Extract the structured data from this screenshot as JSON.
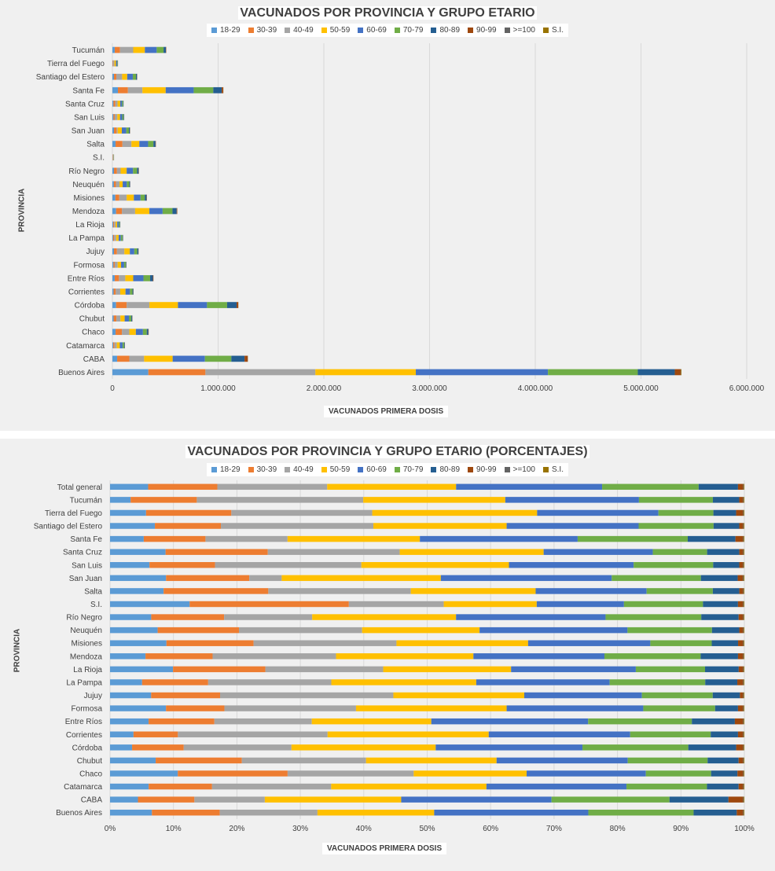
{
  "colors": {
    "18-29": "#5b9bd5",
    "30-39": "#ed7d31",
    "40-49": "#a5a5a5",
    "50-59": "#ffc000",
    "60-69": "#4472c4",
    "70-79": "#70ad47",
    "80-89": "#255e91",
    "90-99": "#9e480e",
    ">=100": "#636363",
    "S.I.": "#997300"
  },
  "legend": [
    "18-29",
    "30-39",
    "40-49",
    "50-59",
    "60-69",
    "70-79",
    "80-89",
    "90-99",
    ">=100",
    "S.I."
  ],
  "chart_data": [
    {
      "type": "bar",
      "orientation": "horizontal",
      "stacked": true,
      "title": "VACUNADOS POR PROVINCIA Y GRUPO ETARIO",
      "xlabel": "VACUNADOS PRIMERA  DOSIS",
      "ylabel": "PROVINCIA",
      "xlim": [
        0,
        6000000
      ],
      "xticks": [
        0,
        1000000,
        2000000,
        3000000,
        4000000,
        5000000,
        6000000
      ],
      "xtick_labels": [
        "0",
        "1.000.000",
        "2.000.000",
        "3.000.000",
        "4.000.000",
        "5.000.000",
        "6.000.000"
      ],
      "categories": [
        "Buenos Aires",
        "CABA",
        "Catamarca",
        "Chaco",
        "Chubut",
        "Córdoba",
        "Corrientes",
        "Entre Ríos",
        "Formosa",
        "Jujuy",
        "La Pampa",
        "La Rioja",
        "Mendoza",
        "Misiones",
        "Neuquén",
        "Río Negro",
        "S.I.",
        "Salta",
        "San Juan",
        "San Luis",
        "Santa Cruz",
        "Santa Fe",
        "Santiago del Estero",
        "Tierra del Fuego",
        "Tucumán"
      ],
      "series": [
        {
          "name": "18-29",
          "values": [
            340000,
            45000,
            8000,
            30000,
            12000,
            35000,
            12000,
            22000,
            10000,
            15000,
            7000,
            8000,
            35000,
            28000,
            14000,
            15000,
            2000,
            30000,
            15000,
            10000,
            10000,
            52000,
            15000,
            3000,
            22000
          ]
        },
        {
          "name": "30-39",
          "values": [
            540000,
            115000,
            12000,
            60000,
            26000,
            100000,
            20000,
            40000,
            12000,
            28000,
            10000,
            8000,
            55000,
            37000,
            20000,
            28000,
            4000,
            65000,
            25000,
            12000,
            18000,
            95000,
            22000,
            6000,
            50000
          ]
        },
        {
          "name": "40-49",
          "values": [
            1040000,
            140000,
            22000,
            70000,
            38000,
            215000,
            42000,
            60000,
            28000,
            70000,
            19000,
            14000,
            125000,
            70000,
            33000,
            35000,
            2000,
            85000,
            10000,
            25000,
            21000,
            137000,
            55000,
            10000,
            125000
          ]
        },
        {
          "name": "50-59",
          "values": [
            950000,
            270000,
            28000,
            62000,
            40000,
            270000,
            50000,
            75000,
            32000,
            52000,
            23000,
            16000,
            135000,
            68000,
            30000,
            57000,
            2000,
            75000,
            39000,
            25000,
            25000,
            220000,
            48000,
            15000,
            110000
          ]
        },
        {
          "name": "60-69",
          "values": [
            1250000,
            305000,
            26000,
            67000,
            40000,
            275000,
            42000,
            97000,
            29000,
            42000,
            21000,
            15000,
            125000,
            63000,
            39000,
            60000,
            2000,
            83000,
            42000,
            21000,
            17000,
            265000,
            53000,
            11000,
            112000
          ]
        },
        {
          "name": "70-79",
          "values": [
            850000,
            250000,
            15000,
            36000,
            23000,
            190000,
            24000,
            63000,
            15000,
            28000,
            15000,
            9000,
            93000,
            40000,
            23000,
            38000,
            2000,
            50000,
            25000,
            13000,
            10000,
            185000,
            30000,
            5000,
            65000
          ]
        },
        {
          "name": "80-89",
          "values": [
            350000,
            125000,
            6000,
            15000,
            9000,
            90000,
            8000,
            26000,
            5000,
            11000,
            5000,
            4000,
            40000,
            17000,
            8000,
            15000,
            1000,
            20000,
            10000,
            5000,
            4000,
            80000,
            10000,
            2000,
            22000
          ]
        },
        {
          "name": "90-99",
          "values": [
            55000,
            30000,
            1000,
            3000,
            1500,
            15000,
            1500,
            5000,
            1000,
            1500,
            1000,
            600,
            5000,
            3000,
            1000,
            2500,
            300,
            3000,
            1200,
            700,
            500,
            14000,
            1500,
            600,
            3000
          ]
        },
        {
          "name": ">=100",
          "values": [
            3000,
            1500,
            100,
            300,
            100,
            1000,
            100,
            300,
            100,
            200,
            100,
            50,
            300,
            200,
            100,
            200,
            20,
            200,
            100,
            50,
            30,
            900,
            100,
            30,
            200
          ]
        },
        {
          "name": "S.I.",
          "values": [
            5000,
            1000,
            200,
            200,
            200,
            1000,
            200,
            200,
            200,
            200,
            100,
            100,
            500,
            300,
            200,
            300,
            50,
            300,
            200,
            100,
            100,
            1000,
            200,
            100,
            300
          ]
        }
      ]
    },
    {
      "type": "bar",
      "orientation": "horizontal",
      "stacked": true,
      "percent": true,
      "title": "VACUNADOS POR PROVINCIA Y GRUPO ETARIO (PORCENTAJES)",
      "xlabel": "VACUNADOS PRIMERA  DOSIS",
      "ylabel": "PROVINCIA",
      "xlim": [
        0,
        100
      ],
      "xticks": [
        0,
        10,
        20,
        30,
        40,
        50,
        60,
        70,
        80,
        90,
        100
      ],
      "xtick_labels": [
        "0%",
        "10%",
        "20%",
        "30%",
        "40%",
        "50%",
        "60%",
        "70%",
        "80%",
        "90%",
        "100%"
      ],
      "categories": [
        "Buenos Aires",
        "CABA",
        "Catamarca",
        "Chaco",
        "Chubut",
        "Córdoba",
        "Corrientes",
        "Entre Ríos",
        "Formosa",
        "Jujuy",
        "La Pampa",
        "La Rioja",
        "Mendoza",
        "Misiones",
        "Neuquén",
        "Río Negro",
        "S.I.",
        "Salta",
        "San Juan",
        "San Luis",
        "Santa Cruz",
        "Santa Fe",
        "Santiago del Estero",
        "Tierra del Fuego",
        "Tucumán",
        "Total general"
      ],
      "series": [
        {
          "name": "18-29",
          "values": [
            6.6,
            4.4,
            6.1,
            10.8,
            7.2,
            3.5,
            3.7,
            6.1,
            8.8,
            6.5,
            5.0,
            10.1,
            5.6,
            9.0,
            7.5,
            6.5,
            12.5,
            8.5,
            7.6,
            6.2,
            8.8,
            5.3,
            7.0,
            5.7,
            3.2,
            6.0
          ]
        },
        {
          "name": "30-39",
          "values": [
            10.7,
            8.9,
            10.0,
            17.5,
            13.6,
            8.2,
            7.0,
            10.4,
            9.2,
            10.9,
            10.3,
            14.8,
            10.6,
            13.9,
            12.8,
            11.5,
            25.0,
            16.6,
            11.3,
            10.3,
            16.2,
            9.7,
            10.3,
            13.5,
            10.3,
            10.9
          ]
        },
        {
          "name": "40-49",
          "values": [
            15.4,
            11.1,
            18.8,
            20.1,
            19.6,
            17.1,
            23.6,
            15.4,
            20.7,
            27.4,
            19.2,
            18.9,
            19.5,
            22.8,
            19.4,
            13.9,
            14.9,
            22.6,
            4.4,
            23.0,
            20.9,
            12.9,
            23.8,
            22.3,
            25.9,
            17.3
          ]
        },
        {
          "name": "50-59",
          "values": [
            18.4,
            21.5,
            24.5,
            18.0,
            20.6,
            22.9,
            25.4,
            18.9,
            23.7,
            20.7,
            22.6,
            20.5,
            21.7,
            21.0,
            18.5,
            22.7,
            14.6,
            19.8,
            21.6,
            23.2,
            22.8,
            20.8,
            20.8,
            26.1,
            22.1,
            20.3
          ]
        },
        {
          "name": "60-69",
          "values": [
            24.3,
            23.7,
            22.1,
            19.0,
            20.7,
            23.3,
            22.3,
            24.8,
            21.5,
            18.6,
            20.8,
            20.0,
            20.7,
            19.5,
            23.3,
            23.6,
            13.7,
            17.6,
            23.2,
            19.6,
            17.3,
            24.8,
            20.6,
            19.2,
            20.8,
            23.0
          ]
        },
        {
          "name": "70-79",
          "values": [
            16.6,
            18.6,
            12.7,
            10.4,
            12.6,
            16.8,
            12.7,
            16.4,
            11.3,
            11.2,
            14.9,
            11.1,
            15.2,
            9.8,
            13.3,
            15.1,
            12.4,
            10.5,
            12.1,
            12.5,
            8.6,
            17.3,
            11.7,
            8.7,
            11.5,
            15.2
          ]
        },
        {
          "name": "80-89",
          "values": [
            6.8,
            9.3,
            5.0,
            4.2,
            4.9,
            7.6,
            4.3,
            6.8,
            3.6,
            4.3,
            5.0,
            5.4,
            5.9,
            4.2,
            4.3,
            5.9,
            5.5,
            4.2,
            5.0,
            4.1,
            5.1,
            7.5,
            4.0,
            3.6,
            4.1,
            6.2
          ]
        },
        {
          "name": "90-99",
          "values": [
            1.0,
            2.3,
            0.7,
            0.9,
            0.7,
            1.1,
            0.8,
            1.3,
            0.8,
            0.5,
            0.9,
            0.7,
            0.8,
            0.8,
            0.6,
            0.7,
            0.8,
            0.6,
            0.7,
            0.6,
            0.6,
            1.2,
            0.6,
            1.1,
            0.6,
            0.8
          ]
        },
        {
          "name": ">=100",
          "values": [
            0.1,
            0.1,
            0.1,
            0.1,
            0.1,
            0.1,
            0.1,
            0.1,
            0.1,
            0.1,
            0.1,
            0.1,
            0.1,
            0.1,
            0.1,
            0.1,
            0.1,
            0.1,
            0.1,
            0.1,
            0.1,
            0.1,
            0.1,
            0.1,
            0.1,
            0.1
          ]
        },
        {
          "name": "S.I.",
          "values": [
            0.1,
            0.1,
            0.1,
            0.1,
            0.1,
            0.1,
            0.1,
            0.1,
            0.1,
            0.1,
            0.1,
            0.1,
            0.1,
            0.1,
            0.1,
            0.1,
            0.1,
            0.1,
            0.1,
            0.1,
            0.1,
            0.1,
            0.1,
            0.1,
            0.1,
            0.1
          ]
        }
      ]
    }
  ]
}
